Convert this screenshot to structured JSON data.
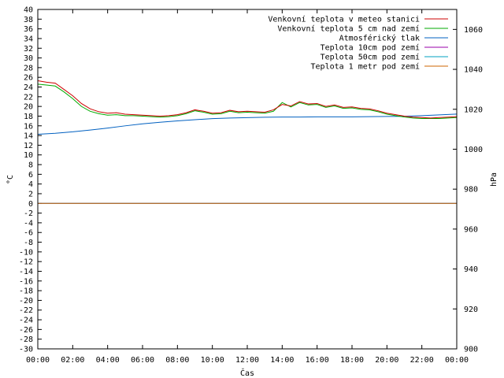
{
  "chart_data": {
    "type": "line",
    "title": "",
    "xlabel": "Čas",
    "ylabel_left": "°C",
    "ylabel_right": "hPa",
    "ylim_left": [
      -30,
      40
    ],
    "ylim_right": [
      900,
      1070
    ],
    "x_ticks": [
      "00:00",
      "02:00",
      "04:00",
      "06:00",
      "08:00",
      "10:00",
      "12:00",
      "14:00",
      "16:00",
      "18:00",
      "20:00",
      "22:00",
      "00:00"
    ],
    "y_ticks_left": [
      40,
      38,
      36,
      34,
      32,
      30,
      28,
      26,
      24,
      22,
      20,
      18,
      16,
      14,
      12,
      10,
      8,
      6,
      4,
      2,
      0,
      -2,
      -4,
      -6,
      -8,
      -10,
      -12,
      -14,
      -16,
      -18,
      -20,
      -22,
      -24,
      -26,
      -28,
      -30
    ],
    "y_ticks_right": [
      1060,
      1040,
      1020,
      1000,
      980,
      960,
      940,
      920,
      900
    ],
    "legend_position": "top-right",
    "series": [
      {
        "name": "Venkovní teplota v meteo stanici",
        "axis": "left",
        "color": "#cc0000",
        "x": [
          0,
          0.5,
          1,
          1.5,
          2,
          2.5,
          3,
          3.5,
          4,
          4.5,
          5,
          5.5,
          6,
          6.5,
          7,
          7.5,
          8,
          8.5,
          9,
          9.5,
          10,
          10.5,
          11,
          11.5,
          12,
          12.5,
          13,
          13.5,
          14,
          14.5,
          15,
          15.5,
          16,
          16.5,
          17,
          17.5,
          18,
          18.5,
          19,
          19.5,
          20,
          20.5,
          21,
          21.5,
          22,
          22.5,
          23,
          23.5,
          24
        ],
        "y": [
          25.3,
          25.0,
          24.8,
          23.5,
          22.2,
          20.6,
          19.5,
          18.9,
          18.6,
          18.7,
          18.4,
          18.3,
          18.2,
          18.1,
          18.0,
          18.1,
          18.3,
          18.7,
          19.3,
          19.0,
          18.6,
          18.7,
          19.2,
          18.9,
          19.0,
          18.9,
          18.8,
          19.3,
          20.4,
          20.1,
          21.0,
          20.5,
          20.6,
          20.0,
          20.3,
          19.8,
          19.9,
          19.6,
          19.5,
          19.1,
          18.6,
          18.3,
          18.0,
          17.8,
          17.7,
          17.6,
          17.7,
          17.8,
          17.9
        ]
      },
      {
        "name": "Venkovní teplota 5 cm nad zemí",
        "axis": "left",
        "color": "#00aa00",
        "x": [
          0,
          0.5,
          1,
          1.5,
          2,
          2.5,
          3,
          3.5,
          4,
          4.5,
          5,
          5.5,
          6,
          6.5,
          7,
          7.5,
          8,
          8.5,
          9,
          9.5,
          10,
          10.5,
          11,
          11.5,
          12,
          12.5,
          13,
          13.5,
          14,
          14.5,
          15,
          15.5,
          16,
          16.5,
          17,
          17.5,
          18,
          18.5,
          19,
          19.5,
          20,
          20.5,
          21,
          21.5,
          22,
          22.5,
          23,
          23.5,
          24
        ],
        "y": [
          24.6,
          24.4,
          24.2,
          23.0,
          21.6,
          20.0,
          19.0,
          18.5,
          18.2,
          18.3,
          18.1,
          18.1,
          18.0,
          17.9,
          17.8,
          17.9,
          18.1,
          18.5,
          19.1,
          18.8,
          18.4,
          18.5,
          19.0,
          18.7,
          18.8,
          18.7,
          18.6,
          19.0,
          20.8,
          19.9,
          20.8,
          20.3,
          20.4,
          19.8,
          20.1,
          19.6,
          19.7,
          19.4,
          19.3,
          18.9,
          18.4,
          18.1,
          17.8,
          17.6,
          17.5,
          17.5,
          17.5,
          17.6,
          17.7
        ]
      },
      {
        "name": "Atmosférický tlak",
        "axis": "right",
        "color": "#0060c0",
        "x": [
          0,
          1,
          2,
          3,
          4,
          5,
          6,
          7,
          8,
          9,
          10,
          11,
          12,
          13,
          14,
          15,
          16,
          17,
          18,
          19,
          20,
          21,
          22,
          23,
          24
        ],
        "y": [
          1007.5,
          1008.0,
          1008.7,
          1009.6,
          1010.6,
          1011.7,
          1012.7,
          1013.5,
          1014.2,
          1014.8,
          1015.3,
          1015.6,
          1015.8,
          1016.0,
          1016.1,
          1016.1,
          1016.2,
          1016.2,
          1016.2,
          1016.3,
          1016.4,
          1016.5,
          1016.8,
          1017.2,
          1017.6
        ]
      },
      {
        "name": "Teplota 10cm pod zemí",
        "axis": "left",
        "color": "#9900aa",
        "x": [
          0,
          24
        ],
        "y": [
          0,
          0
        ]
      },
      {
        "name": "Teplota 50cm pod zemí",
        "axis": "left",
        "color": "#00a0c0",
        "x": [
          0,
          24
        ],
        "y": [
          0,
          0
        ]
      },
      {
        "name": "Teplota 1 metr pod zemí",
        "axis": "left",
        "color": "#cc6600",
        "x": [
          0,
          24
        ],
        "y": [
          0,
          0
        ]
      }
    ]
  }
}
